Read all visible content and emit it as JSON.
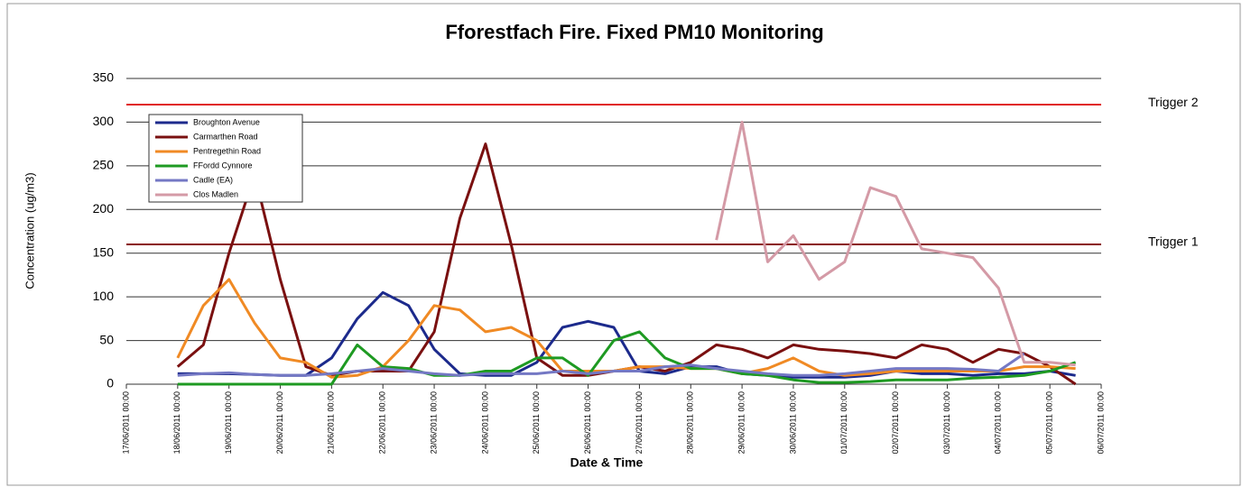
{
  "chart_data": {
    "type": "line",
    "title": "Fforestfach Fire. Fixed PM10 Monitoring",
    "x_label": "Date & Time",
    "y_label": "Concentration (ug/m3)",
    "x": [
      "2011-06-18T00:00",
      "2011-06-18T12:00",
      "2011-06-19T00:00",
      "2011-06-19T12:00",
      "2011-06-20T00:00",
      "2011-06-20T12:00",
      "2011-06-21T00:00",
      "2011-06-21T12:00",
      "2011-06-22T00:00",
      "2011-06-22T12:00",
      "2011-06-23T00:00",
      "2011-06-23T12:00",
      "2011-06-24T00:00",
      "2011-06-24T12:00",
      "2011-06-25T00:00",
      "2011-06-25T12:00",
      "2011-06-26T00:00",
      "2011-06-26T12:00",
      "2011-06-27T00:00",
      "2011-06-27T12:00",
      "2011-06-28T00:00",
      "2011-06-28T12:00",
      "2011-06-29T00:00",
      "2011-06-29T12:00",
      "2011-06-30T00:00",
      "2011-06-30T12:00",
      "2011-07-01T00:00",
      "2011-07-01T12:00",
      "2011-07-02T00:00",
      "2011-07-02T12:00",
      "2011-07-03T00:00",
      "2011-07-03T12:00",
      "2011-07-04T00:00",
      "2011-07-04T12:00",
      "2011-07-05T00:00",
      "2011-07-05T12:00"
    ],
    "series": [
      {
        "name": "Broughton Avenue",
        "color": "#1c2a8c",
        "values": [
          12,
          12,
          12,
          11,
          10,
          10,
          30,
          75,
          105,
          90,
          40,
          12,
          10,
          10,
          25,
          65,
          72,
          65,
          15,
          12,
          20,
          20,
          12,
          10,
          8,
          8,
          8,
          10,
          15,
          12,
          12,
          10,
          12,
          12,
          15,
          10
        ]
      },
      {
        "name": "Carmarthen Road",
        "color": "#7a1010",
        "values": [
          20,
          45,
          150,
          240,
          120,
          20,
          10,
          15,
          15,
          15,
          60,
          190,
          275,
          160,
          30,
          10,
          10,
          15,
          20,
          15,
          25,
          45,
          40,
          30,
          45,
          40,
          38,
          35,
          30,
          45,
          40,
          25,
          40,
          35,
          20,
          0
        ]
      },
      {
        "name": "Pentregethin Road",
        "color": "#f08a24",
        "values": [
          30,
          90,
          120,
          70,
          30,
          25,
          8,
          10,
          20,
          50,
          90,
          85,
          60,
          65,
          50,
          15,
          15,
          15,
          20,
          20,
          18,
          18,
          12,
          18,
          30,
          15,
          10,
          12,
          15,
          15,
          15,
          15,
          15,
          20,
          20,
          18
        ]
      },
      {
        "name": "FFordd Cynnore",
        "color": "#1e9a22",
        "values": [
          0,
          0,
          0,
          0,
          0,
          0,
          0,
          45,
          20,
          18,
          10,
          10,
          15,
          15,
          30,
          30,
          10,
          50,
          60,
          30,
          18,
          18,
          12,
          10,
          5,
          2,
          2,
          3,
          5,
          5,
          5,
          7,
          8,
          10,
          15,
          25
        ]
      },
      {
        "name": "Cadle (EA)",
        "color": "#7478c4",
        "values": [
          10,
          12,
          13,
          11,
          10,
          10,
          12,
          15,
          18,
          15,
          12,
          10,
          12,
          12,
          12,
          15,
          12,
          15,
          15,
          20,
          22,
          18,
          15,
          12,
          10,
          10,
          12,
          15,
          18,
          18,
          18,
          17,
          15,
          35,
          null,
          null
        ]
      },
      {
        "name": "Clos Madlen",
        "color": "#d49aa6",
        "values": [
          null,
          null,
          null,
          null,
          null,
          null,
          null,
          null,
          null,
          null,
          null,
          null,
          null,
          null,
          null,
          null,
          null,
          null,
          null,
          null,
          null,
          165,
          300,
          140,
          170,
          120,
          140,
          225,
          215,
          155,
          150,
          145,
          110,
          25,
          25,
          22
        ]
      }
    ],
    "reference_lines": [
      {
        "label": "Trigger 2",
        "value": 320,
        "color": "#e02020"
      },
      {
        "label": "Trigger 1",
        "value": 160,
        "color": "#8a1010"
      }
    ],
    "ylim": [
      0,
      350
    ],
    "yticks": [
      0,
      50,
      100,
      150,
      200,
      250,
      300,
      350
    ],
    "xlim": [
      "2011-06-17T00:00",
      "2011-07-06T00:00"
    ],
    "xticks": [
      {
        "value": "2011-06-17T00:00",
        "label": "17/06/2011 00:00"
      },
      {
        "value": "2011-06-18T00:00",
        "label": "18/06/2011 00:00"
      },
      {
        "value": "2011-06-19T00:00",
        "label": "19/06/2011 00:00"
      },
      {
        "value": "2011-06-20T00:00",
        "label": "20/06/2011 00:00"
      },
      {
        "value": "2011-06-21T00:00",
        "label": "21/06/2011 00:00"
      },
      {
        "value": "2011-06-22T00:00",
        "label": "22/06/2011 00:00"
      },
      {
        "value": "2011-06-23T00:00",
        "label": "23/06/2011 00:00"
      },
      {
        "value": "2011-06-24T00:00",
        "label": "24/06/2011 00:00"
      },
      {
        "value": "2011-06-25T00:00",
        "label": "25/06/2011 00:00"
      },
      {
        "value": "2011-06-26T00:00",
        "label": "26/06/2011 00:00"
      },
      {
        "value": "2011-06-27T00:00",
        "label": "27/06/2011 00:00"
      },
      {
        "value": "2011-06-28T00:00",
        "label": "28/06/2011 00:00"
      },
      {
        "value": "2011-06-29T00:00",
        "label": "29/06/2011 00:00"
      },
      {
        "value": "2011-06-30T00:00",
        "label": "30/06/2011 00:00"
      },
      {
        "value": "2011-07-01T00:00",
        "label": "01/07/2011 00:00"
      },
      {
        "value": "2011-07-02T00:00",
        "label": "02/07/2011 00:00"
      },
      {
        "value": "2011-07-03T00:00",
        "label": "03/07/2011 00:00"
      },
      {
        "value": "2011-07-04T00:00",
        "label": "04/07/2011 00:00"
      },
      {
        "value": "2011-07-05T00:00",
        "label": "05/07/2011 00:00"
      },
      {
        "value": "2011-07-06T00:00",
        "label": "06/07/2011 00:00"
      }
    ],
    "grid": true,
    "legend": "top-left"
  }
}
